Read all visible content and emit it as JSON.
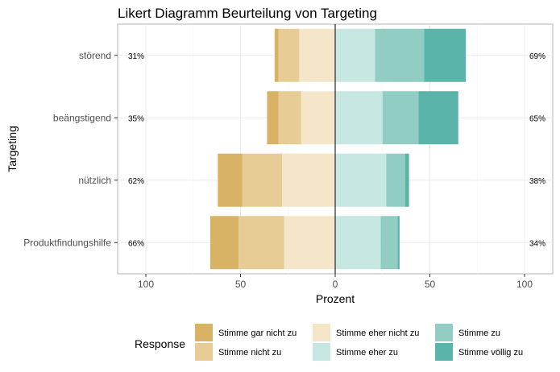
{
  "chart_data": {
    "type": "bar",
    "title": "Likert Diagramm Beurteilung von Targeting",
    "xlabel": "Prozent",
    "ylabel": "Targeting",
    "xlim": [
      -115,
      115
    ],
    "xticks": [
      -100,
      -50,
      0,
      50,
      100
    ],
    "xtick_labels": [
      "100",
      "50",
      "0",
      "50",
      "100"
    ],
    "categories": [
      "störend",
      "beängstigend",
      "nützlich",
      "Produktfindungshilfe"
    ],
    "left_percent_labels": [
      "31%",
      "35%",
      "62%",
      "66%"
    ],
    "right_percent_labels": [
      "69%",
      "65%",
      "38%",
      "34%"
    ],
    "series": [
      {
        "name": "Stimme gar nicht zu",
        "color": "#d8b365",
        "values": [
          2,
          6,
          13,
          15
        ]
      },
      {
        "name": "Stimme nicht zu",
        "color": "#e8cc96",
        "values": [
          11,
          12,
          21,
          24
        ]
      },
      {
        "name": "Stimme eher nicht zu",
        "color": "#f5e5c9",
        "values": [
          19,
          18,
          28,
          27
        ]
      },
      {
        "name": "Stimme eher zu",
        "color": "#c7e7e3",
        "values": [
          21,
          25,
          27,
          24
        ]
      },
      {
        "name": "Stimme zu",
        "color": "#92cdc3",
        "values": [
          26,
          19,
          10,
          9
        ]
      },
      {
        "name": "Stimme völlig zu",
        "color": "#5ab4aa",
        "values": [
          22,
          21,
          2,
          1
        ]
      }
    ],
    "negative_series_count": 3,
    "legend_title": "Response",
    "legend_position": "bottom",
    "grid": true
  }
}
